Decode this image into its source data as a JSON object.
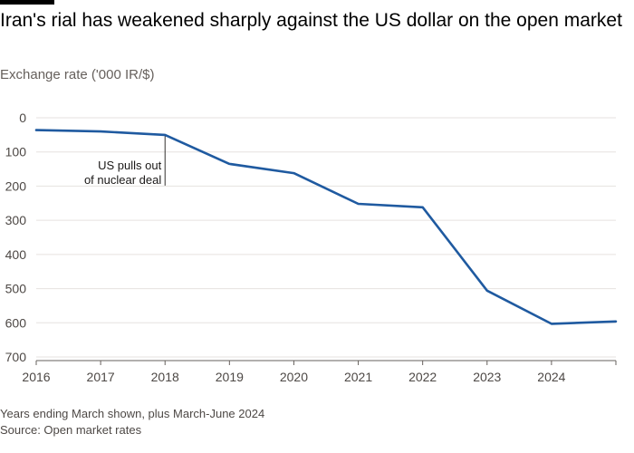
{
  "chart_data": {
    "type": "line",
    "title": "Iran's rial has weakened sharply against the US dollar on the open market",
    "subtitle": "Exchange rate ('000 IR/$)",
    "x_tick_labels": [
      "2016",
      "2017",
      "2018",
      "2019",
      "2020",
      "2021",
      "2022",
      "2023",
      "2024"
    ],
    "y_tick_labels": [
      "0",
      "100",
      "200",
      "300",
      "400",
      "500",
      "600",
      "700"
    ],
    "y_ticks": [
      0,
      100,
      200,
      300,
      400,
      500,
      600,
      700
    ],
    "xlim": [
      2016,
      2025
    ],
    "ylim": [
      0,
      700
    ],
    "y_inverted": true,
    "grid": true,
    "series": [
      {
        "color": "#1f5aa0",
        "x": [
          2016,
          2017,
          2018,
          2019,
          2020,
          2021,
          2022,
          2023,
          2024,
          2025
        ],
        "y": [
          36,
          40,
          50,
          135,
          162,
          252,
          262,
          506,
          603,
          596
        ]
      }
    ],
    "annotations": [
      {
        "lines": [
          "US pulls out",
          "of nuclear deal"
        ],
        "x": 2018,
        "y": 50
      }
    ],
    "footnote": "Years ending March shown, plus March-June 2024",
    "source": "Source: Open market rates"
  }
}
